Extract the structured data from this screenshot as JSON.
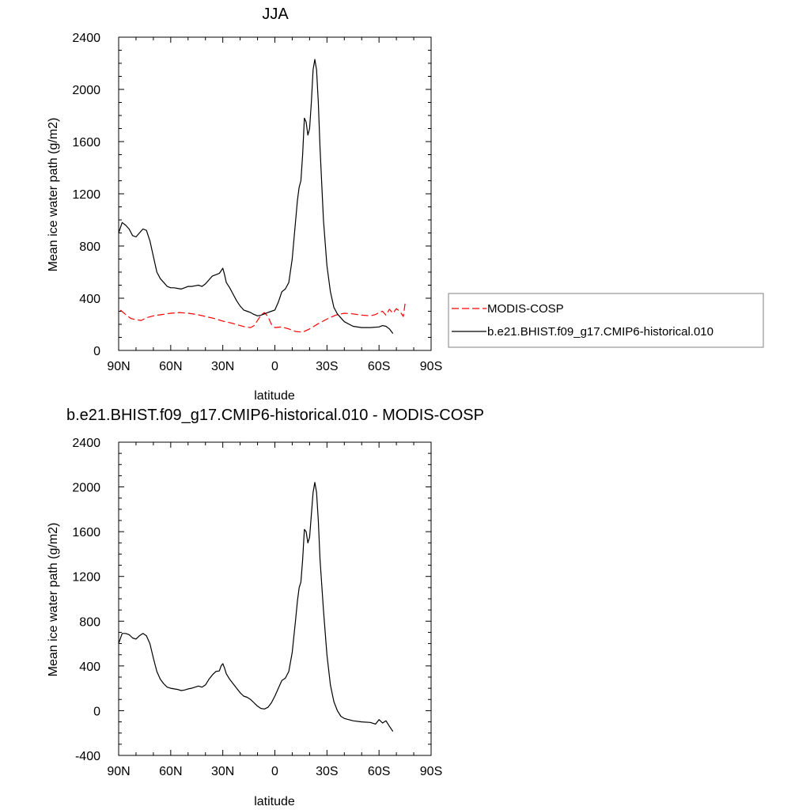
{
  "chart_data": [
    {
      "type": "line",
      "title": "JJA",
      "xlabel": "latitude",
      "ylabel": "Mean ice water path (g/m2)",
      "xlim": [
        90,
        -90
      ],
      "ylim": [
        0,
        2400
      ],
      "x_ticks": [
        90,
        60,
        30,
        0,
        -30,
        -60,
        -90
      ],
      "x_tick_labels": [
        "90N",
        "60N",
        "30N",
        "0",
        "30S",
        "60S",
        "90S"
      ],
      "y_ticks": [
        0,
        400,
        800,
        1200,
        1600,
        2000,
        2400
      ],
      "y_tick_labels": [
        "0",
        "400",
        "800",
        "1200",
        "1600",
        "2000",
        "2400"
      ],
      "grid": false,
      "legend_position": "right",
      "series": [
        {
          "name": "MODIS-COSP",
          "color": "#ff0000",
          "dash": true,
          "x": [
            89,
            86,
            83,
            80,
            77,
            74,
            70,
            65,
            60,
            55,
            50,
            45,
            40,
            35,
            30,
            25,
            20,
            17,
            14,
            12,
            10,
            8,
            6,
            4,
            2,
            0,
            -4,
            -8,
            -12,
            -16,
            -20,
            -25,
            -30,
            -35,
            -40,
            -45,
            -50,
            -55,
            -58,
            -60,
            -62,
            -64,
            -66,
            -68,
            -70,
            -72,
            -74,
            -75
          ],
          "y": [
            310,
            275,
            245,
            235,
            230,
            250,
            265,
            275,
            285,
            290,
            285,
            275,
            260,
            245,
            225,
            210,
            190,
            180,
            175,
            190,
            230,
            270,
            290,
            260,
            200,
            175,
            180,
            165,
            145,
            140,
            165,
            205,
            240,
            270,
            285,
            280,
            270,
            265,
            275,
            290,
            300,
            270,
            315,
            285,
            320,
            300,
            260,
            360
          ]
        },
        {
          "name": "b.e21.BHIST.f09_g17.CMIP6-historical.010",
          "color": "#000000",
          "dash": false,
          "x": [
            90,
            88,
            86,
            84,
            82,
            80,
            78,
            76,
            74,
            72,
            70,
            68,
            66,
            64,
            62,
            60,
            58,
            56,
            54,
            52,
            50,
            48,
            46,
            44,
            42,
            40,
            38,
            36,
            34,
            32,
            31,
            30,
            29,
            28,
            26,
            24,
            22,
            20,
            18,
            16,
            14,
            12,
            10,
            8,
            6,
            4,
            2,
            0,
            -2,
            -4,
            -6,
            -8,
            -10,
            -12,
            -13,
            -14,
            -15,
            -16,
            -17,
            -18,
            -19,
            -20,
            -21,
            -22,
            -23,
            -24,
            -25,
            -26,
            -28,
            -30,
            -32,
            -34,
            -36,
            -38,
            -40,
            -45,
            -50,
            -55,
            -60,
            -62,
            -64,
            -66,
            -68
          ],
          "y": [
            900,
            980,
            960,
            930,
            880,
            870,
            900,
            930,
            920,
            840,
            720,
            600,
            550,
            520,
            490,
            480,
            480,
            475,
            470,
            480,
            490,
            490,
            495,
            500,
            490,
            510,
            540,
            570,
            580,
            590,
            610,
            630,
            580,
            520,
            480,
            430,
            380,
            340,
            310,
            300,
            290,
            275,
            265,
            270,
            280,
            290,
            300,
            310,
            370,
            450,
            470,
            520,
            700,
            1000,
            1150,
            1250,
            1300,
            1500,
            1780,
            1750,
            1650,
            1700,
            1900,
            2150,
            2230,
            2150,
            1900,
            1550,
            1000,
            650,
            450,
            330,
            280,
            250,
            220,
            185,
            175,
            175,
            180,
            190,
            185,
            165,
            130
          ]
        }
      ]
    },
    {
      "type": "line",
      "title": "b.e21.BHIST.f09_g17.CMIP6-historical.010 - MODIS-COSP",
      "xlabel": "latitude",
      "ylabel": "Mean ice water path (g/m2)",
      "xlim": [
        90,
        -90
      ],
      "ylim": [
        -400,
        2400
      ],
      "x_ticks": [
        90,
        60,
        30,
        0,
        -30,
        -60,
        -90
      ],
      "x_tick_labels": [
        "90N",
        "60N",
        "30N",
        "0",
        "30S",
        "60S",
        "90S"
      ],
      "y_ticks": [
        -400,
        0,
        400,
        800,
        1200,
        1600,
        2000,
        2400
      ],
      "y_tick_labels": [
        "-400",
        "0",
        "400",
        "800",
        "1200",
        "1600",
        "2000",
        "2400"
      ],
      "grid": false,
      "series": [
        {
          "color": "#000000",
          "dash": false,
          "x": [
            90,
            88,
            86,
            84,
            82,
            80,
            78,
            76,
            74,
            72,
            70,
            68,
            66,
            64,
            62,
            60,
            58,
            56,
            54,
            52,
            50,
            48,
            46,
            44,
            42,
            40,
            38,
            36,
            34,
            32,
            31,
            30,
            29,
            28,
            26,
            24,
            22,
            20,
            18,
            16,
            14,
            12,
            10,
            8,
            6,
            4,
            2,
            0,
            -2,
            -4,
            -6,
            -8,
            -10,
            -12,
            -13,
            -14,
            -15,
            -16,
            -17,
            -18,
            -19,
            -20,
            -21,
            -22,
            -23,
            -24,
            -25,
            -26,
            -28,
            -30,
            -32,
            -34,
            -36,
            -38,
            -40,
            -45,
            -50,
            -55,
            -58,
            -60,
            -62,
            -64,
            -66,
            -68
          ],
          "y": [
            600,
            690,
            690,
            680,
            650,
            640,
            670,
            690,
            670,
            600,
            470,
            350,
            280,
            240,
            210,
            200,
            195,
            190,
            180,
            185,
            195,
            200,
            210,
            220,
            210,
            230,
            280,
            320,
            350,
            355,
            400,
            420,
            380,
            330,
            280,
            240,
            200,
            160,
            130,
            120,
            100,
            70,
            40,
            20,
            15,
            30,
            70,
            130,
            200,
            270,
            290,
            350,
            520,
            820,
            980,
            1100,
            1150,
            1350,
            1620,
            1600,
            1500,
            1550,
            1750,
            1950,
            2040,
            1950,
            1700,
            1350,
            900,
            500,
            230,
            80,
            0,
            -50,
            -70,
            -90,
            -100,
            -105,
            -120,
            -80,
            -110,
            -90,
            -140,
            -185
          ]
        }
      ]
    }
  ]
}
